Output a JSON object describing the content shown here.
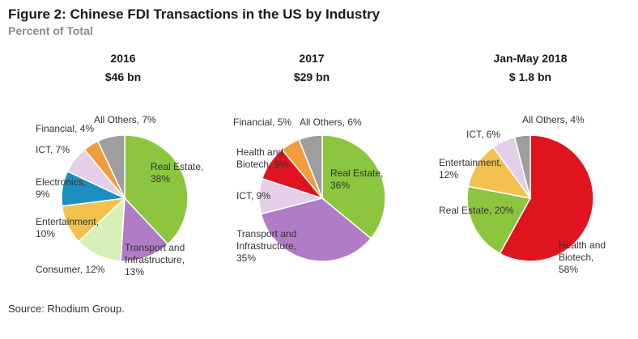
{
  "figure": {
    "title": "Figure 2: Chinese FDI Transactions in the US by Industry",
    "subtitle": "Percent of Total",
    "source": "Source: Rhodium Group."
  },
  "colors": {
    "real_estate": "#8cc63f",
    "transport": "#b07cc6",
    "consumer": "#d7f0b8",
    "entertainment": "#f2c14e",
    "electronics": "#1b8fbf",
    "ict": "#e5cfe8",
    "financial": "#f39c3d",
    "all_others": "#9e9e9e",
    "health": "#e0141e"
  },
  "chart_data": [
    {
      "type": "pie",
      "period": "2016",
      "total": "$46 bn",
      "slices": [
        {
          "key": "real_estate",
          "value": 38,
          "label": [
            "Real Estate,",
            "38%"
          ]
        },
        {
          "key": "transport",
          "value": 13,
          "label": [
            "Transport and",
            "Infrastructure,",
            "13%"
          ]
        },
        {
          "key": "consumer",
          "value": 12,
          "label": [
            "Consumer, 12%"
          ]
        },
        {
          "key": "entertainment",
          "value": 10,
          "label": [
            "Entertainment,",
            "10%"
          ]
        },
        {
          "key": "electronics",
          "value": 9,
          "label": [
            "Electronics,",
            "9%"
          ]
        },
        {
          "key": "ict",
          "value": 7,
          "label": [
            "ICT, 7%"
          ]
        },
        {
          "key": "financial",
          "value": 4,
          "label": [
            "Financial, 4%"
          ]
        },
        {
          "key": "all_others",
          "value": 7,
          "label": [
            "All Others, 7%"
          ]
        }
      ]
    },
    {
      "type": "pie",
      "period": "2017",
      "total": "$29 bn",
      "slices": [
        {
          "key": "real_estate",
          "value": 36,
          "label": [
            "Real Estate,",
            "36%"
          ]
        },
        {
          "key": "transport",
          "value": 35,
          "label": [
            "Transport and",
            "Infrastructure,",
            "35%"
          ]
        },
        {
          "key": "ict",
          "value": 9,
          "label": [
            "ICT, 9%"
          ]
        },
        {
          "key": "health",
          "value": 9,
          "label": [
            "Health and",
            "Biotech, 9%"
          ]
        },
        {
          "key": "financial",
          "value": 5,
          "label": [
            "Financial, 5%"
          ]
        },
        {
          "key": "all_others",
          "value": 6,
          "label": [
            "All Others, 6%"
          ]
        }
      ]
    },
    {
      "type": "pie",
      "period": "Jan-May 2018",
      "total": "$ 1.8 bn",
      "slices": [
        {
          "key": "health",
          "value": 58,
          "label": [
            "Health and",
            "Biotech,",
            "58%"
          ]
        },
        {
          "key": "real_estate",
          "value": 20,
          "label": [
            "Real Estate, 20%"
          ]
        },
        {
          "key": "entertainment",
          "value": 12,
          "label": [
            "Entertainment,",
            "12%"
          ]
        },
        {
          "key": "ict",
          "value": 6,
          "label": [
            "ICT, 6%"
          ]
        },
        {
          "key": "all_others",
          "value": 4,
          "label": [
            "All Others, 4%"
          ]
        }
      ]
    }
  ]
}
